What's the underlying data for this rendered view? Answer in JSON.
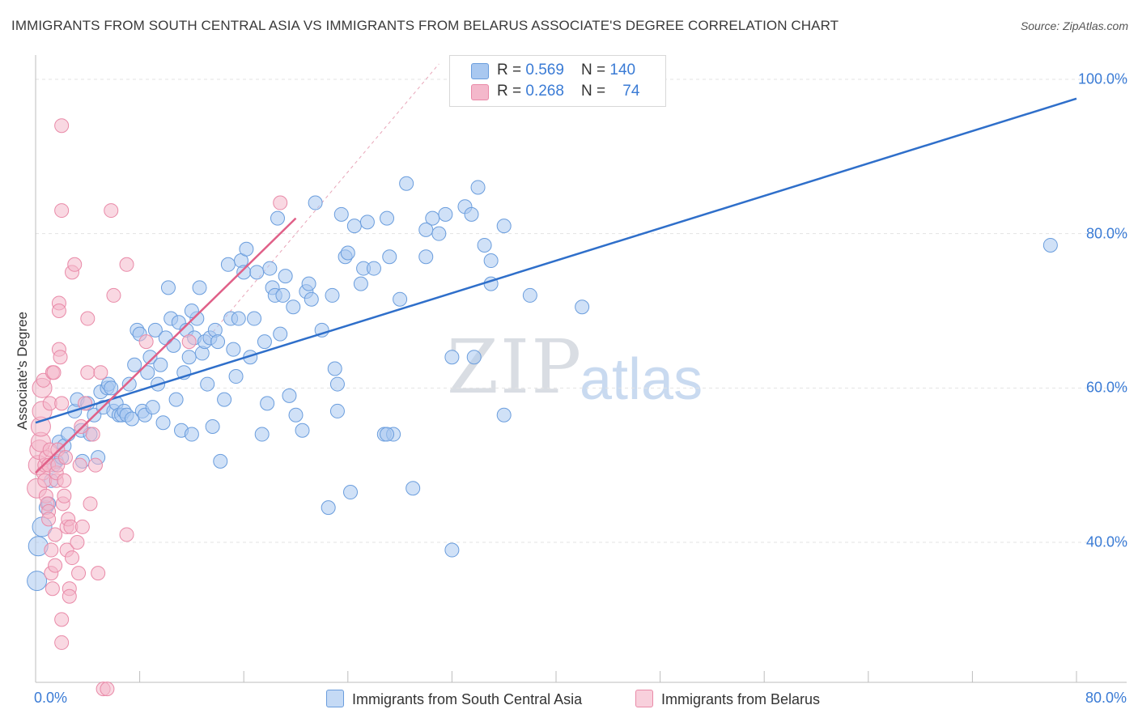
{
  "title": "IMMIGRANTS FROM SOUTH CENTRAL ASIA VS IMMIGRANTS FROM BELARUS ASSOCIATE'S DEGREE CORRELATION CHART",
  "source": "Source: ZipAtlas.com",
  "watermark": {
    "part1": "ZIP",
    "part2": "atlas"
  },
  "legend_top": {
    "rows": [
      {
        "r_label": "R = ",
        "r_value": "0.569",
        "n_label": "N = ",
        "n_value": "140"
      },
      {
        "r_label": "R = ",
        "r_value": "0.268",
        "n_label": "N = ",
        "n_value": "74"
      }
    ]
  },
  "legend_bottom": {
    "items": [
      "Immigrants from South Central Asia",
      "Immigrants from Belarus"
    ]
  },
  "axes": {
    "ylabel": "Associate's Degree",
    "x_min_label": "0.0%",
    "x_max_label": "80.0%",
    "y_ticks": [
      "100.0%",
      "80.0%",
      "60.0%",
      "40.0%"
    ]
  },
  "colors": {
    "blue_fill": "#a9c8f0",
    "blue_stroke": "#6a9ddd",
    "blue_line": "#2f6fca",
    "pink_fill": "#f4b8cb",
    "pink_stroke": "#e98aa8",
    "pink_line": "#e06088",
    "tick_label": "#3a7bd5",
    "grid": "#e3e3e3"
  },
  "chart_data": {
    "type": "scatter",
    "title": "IMMIGRANTS FROM SOUTH CENTRAL ASIA VS IMMIGRANTS FROM BELARUS ASSOCIATE'S DEGREE CORRELATION CHART",
    "xlabel": "",
    "ylabel": "Associate's Degree",
    "xlim": [
      0,
      0.8
    ],
    "ylim": [
      0.2,
      1.0
    ],
    "grid": true,
    "legend_position": "bottom",
    "series": [
      {
        "name": "Immigrants from South Central Asia",
        "color": "#a9c8f0",
        "trend": {
          "x": [
            0.0,
            0.8
          ],
          "y": [
            0.555,
            0.975
          ]
        },
        "points": [
          [
            0.001,
            0.35
          ],
          [
            0.002,
            0.395
          ],
          [
            0.005,
            0.42
          ],
          [
            0.008,
            0.445
          ],
          [
            0.01,
            0.45
          ],
          [
            0.012,
            0.48
          ],
          [
            0.014,
            0.5
          ],
          [
            0.016,
            0.505
          ],
          [
            0.018,
            0.53
          ],
          [
            0.02,
            0.51
          ],
          [
            0.022,
            0.525
          ],
          [
            0.025,
            0.54
          ],
          [
            0.03,
            0.57
          ],
          [
            0.032,
            0.585
          ],
          [
            0.035,
            0.545
          ],
          [
            0.036,
            0.505
          ],
          [
            0.04,
            0.58
          ],
          [
            0.042,
            0.54
          ],
          [
            0.045,
            0.565
          ],
          [
            0.048,
            0.51
          ],
          [
            0.05,
            0.595
          ],
          [
            0.052,
            0.575
          ],
          [
            0.055,
            0.6
          ],
          [
            0.056,
            0.605
          ],
          [
            0.058,
            0.6
          ],
          [
            0.06,
            0.57
          ],
          [
            0.062,
            0.58
          ],
          [
            0.064,
            0.565
          ],
          [
            0.066,
            0.565
          ],
          [
            0.068,
            0.57
          ],
          [
            0.07,
            0.565
          ],
          [
            0.072,
            0.605
          ],
          [
            0.074,
            0.56
          ],
          [
            0.076,
            0.63
          ],
          [
            0.078,
            0.675
          ],
          [
            0.08,
            0.67
          ],
          [
            0.082,
            0.57
          ],
          [
            0.084,
            0.565
          ],
          [
            0.086,
            0.62
          ],
          [
            0.088,
            0.64
          ],
          [
            0.09,
            0.575
          ],
          [
            0.092,
            0.675
          ],
          [
            0.094,
            0.605
          ],
          [
            0.096,
            0.63
          ],
          [
            0.098,
            0.555
          ],
          [
            0.1,
            0.665
          ],
          [
            0.102,
            0.73
          ],
          [
            0.104,
            0.69
          ],
          [
            0.106,
            0.655
          ],
          [
            0.108,
            0.585
          ],
          [
            0.11,
            0.685
          ],
          [
            0.112,
            0.545
          ],
          [
            0.114,
            0.62
          ],
          [
            0.116,
            0.675
          ],
          [
            0.118,
            0.64
          ],
          [
            0.12,
            0.54
          ],
          [
            0.122,
            0.665
          ],
          [
            0.124,
            0.69
          ],
          [
            0.126,
            0.73
          ],
          [
            0.128,
            0.645
          ],
          [
            0.13,
            0.66
          ],
          [
            0.132,
            0.605
          ],
          [
            0.134,
            0.665
          ],
          [
            0.136,
            0.55
          ],
          [
            0.138,
            0.675
          ],
          [
            0.14,
            0.66
          ],
          [
            0.142,
            0.505
          ],
          [
            0.145,
            0.585
          ],
          [
            0.148,
            0.76
          ],
          [
            0.15,
            0.69
          ],
          [
            0.152,
            0.65
          ],
          [
            0.154,
            0.615
          ],
          [
            0.156,
            0.69
          ],
          [
            0.158,
            0.765
          ],
          [
            0.16,
            0.75
          ],
          [
            0.162,
            0.78
          ],
          [
            0.165,
            0.64
          ],
          [
            0.168,
            0.69
          ],
          [
            0.17,
            0.75
          ],
          [
            0.174,
            0.54
          ],
          [
            0.176,
            0.66
          ],
          [
            0.178,
            0.58
          ],
          [
            0.18,
            0.755
          ],
          [
            0.182,
            0.73
          ],
          [
            0.184,
            0.72
          ],
          [
            0.186,
            0.82
          ],
          [
            0.188,
            0.67
          ],
          [
            0.19,
            0.72
          ],
          [
            0.192,
            0.745
          ],
          [
            0.195,
            0.59
          ],
          [
            0.198,
            0.705
          ],
          [
            0.2,
            0.565
          ],
          [
            0.205,
            0.545
          ],
          [
            0.208,
            0.725
          ],
          [
            0.21,
            0.735
          ],
          [
            0.212,
            0.715
          ],
          [
            0.215,
            0.84
          ],
          [
            0.22,
            0.675
          ],
          [
            0.225,
            0.445
          ],
          [
            0.228,
            0.72
          ],
          [
            0.23,
            0.625
          ],
          [
            0.232,
            0.605
          ],
          [
            0.235,
            0.825
          ],
          [
            0.238,
            0.77
          ],
          [
            0.24,
            0.775
          ],
          [
            0.242,
            0.465
          ],
          [
            0.245,
            0.81
          ],
          [
            0.25,
            0.735
          ],
          [
            0.252,
            0.755
          ],
          [
            0.255,
            0.815
          ],
          [
            0.26,
            0.755
          ],
          [
            0.268,
            0.54
          ],
          [
            0.27,
            0.82
          ],
          [
            0.272,
            0.77
          ],
          [
            0.275,
            0.54
          ],
          [
            0.28,
            0.715
          ],
          [
            0.285,
            0.865
          ],
          [
            0.3,
            0.77
          ],
          [
            0.305,
            0.82
          ],
          [
            0.31,
            0.8
          ],
          [
            0.315,
            0.825
          ],
          [
            0.32,
            0.64
          ],
          [
            0.32,
            0.39
          ],
          [
            0.33,
            0.835
          ],
          [
            0.335,
            0.825
          ],
          [
            0.337,
            0.64
          ],
          [
            0.34,
            0.86
          ],
          [
            0.345,
            0.785
          ],
          [
            0.35,
            0.765
          ],
          [
            0.35,
            0.735
          ],
          [
            0.36,
            0.81
          ],
          [
            0.36,
            0.565
          ],
          [
            0.38,
            0.72
          ],
          [
            0.42,
            0.705
          ],
          [
            0.78,
            0.785
          ],
          [
            0.29,
            0.47
          ],
          [
            0.3,
            0.805
          ],
          [
            0.27,
            0.54
          ],
          [
            0.232,
            0.57
          ],
          [
            0.12,
            0.7
          ]
        ]
      },
      {
        "name": "Immigrants from Belarus",
        "color": "#f4b8cb",
        "trend": {
          "x": [
            0.0,
            0.2
          ],
          "y": [
            0.49,
            0.82
          ]
        },
        "points": [
          [
            0.001,
            0.47
          ],
          [
            0.002,
            0.5
          ],
          [
            0.003,
            0.52
          ],
          [
            0.004,
            0.53
          ],
          [
            0.004,
            0.55
          ],
          [
            0.005,
            0.57
          ],
          [
            0.005,
            0.6
          ],
          [
            0.006,
            0.61
          ],
          [
            0.006,
            0.49
          ],
          [
            0.007,
            0.48
          ],
          [
            0.007,
            0.5
          ],
          [
            0.008,
            0.51
          ],
          [
            0.008,
            0.46
          ],
          [
            0.009,
            0.45
          ],
          [
            0.01,
            0.44
          ],
          [
            0.01,
            0.43
          ],
          [
            0.01,
            0.5
          ],
          [
            0.011,
            0.52
          ],
          [
            0.011,
            0.58
          ],
          [
            0.012,
            0.39
          ],
          [
            0.012,
            0.36
          ],
          [
            0.013,
            0.34
          ],
          [
            0.013,
            0.62
          ],
          [
            0.014,
            0.62
          ],
          [
            0.015,
            0.37
          ],
          [
            0.015,
            0.41
          ],
          [
            0.016,
            0.48
          ],
          [
            0.016,
            0.49
          ],
          [
            0.017,
            0.5
          ],
          [
            0.017,
            0.52
          ],
          [
            0.018,
            0.71
          ],
          [
            0.018,
            0.7
          ],
          [
            0.018,
            0.65
          ],
          [
            0.019,
            0.64
          ],
          [
            0.02,
            0.3
          ],
          [
            0.02,
            0.27
          ],
          [
            0.02,
            0.83
          ],
          [
            0.02,
            0.58
          ],
          [
            0.021,
            0.45
          ],
          [
            0.022,
            0.46
          ],
          [
            0.022,
            0.48
          ],
          [
            0.023,
            0.51
          ],
          [
            0.024,
            0.39
          ],
          [
            0.024,
            0.42
          ],
          [
            0.025,
            0.43
          ],
          [
            0.026,
            0.34
          ],
          [
            0.026,
            0.33
          ],
          [
            0.027,
            0.42
          ],
          [
            0.028,
            0.38
          ],
          [
            0.028,
            0.75
          ],
          [
            0.03,
            0.76
          ],
          [
            0.02,
            0.94
          ],
          [
            0.032,
            0.4
          ],
          [
            0.033,
            0.36
          ],
          [
            0.034,
            0.5
          ],
          [
            0.035,
            0.55
          ],
          [
            0.036,
            0.42
          ],
          [
            0.038,
            0.58
          ],
          [
            0.04,
            0.62
          ],
          [
            0.04,
            0.69
          ],
          [
            0.042,
            0.45
          ],
          [
            0.044,
            0.54
          ],
          [
            0.046,
            0.5
          ],
          [
            0.048,
            0.36
          ],
          [
            0.05,
            0.62
          ],
          [
            0.052,
            0.21
          ],
          [
            0.055,
            0.21
          ],
          [
            0.058,
            0.83
          ],
          [
            0.06,
            0.72
          ],
          [
            0.07,
            0.76
          ],
          [
            0.07,
            0.41
          ],
          [
            0.085,
            0.66
          ],
          [
            0.118,
            0.66
          ],
          [
            0.188,
            0.84
          ]
        ]
      }
    ]
  }
}
